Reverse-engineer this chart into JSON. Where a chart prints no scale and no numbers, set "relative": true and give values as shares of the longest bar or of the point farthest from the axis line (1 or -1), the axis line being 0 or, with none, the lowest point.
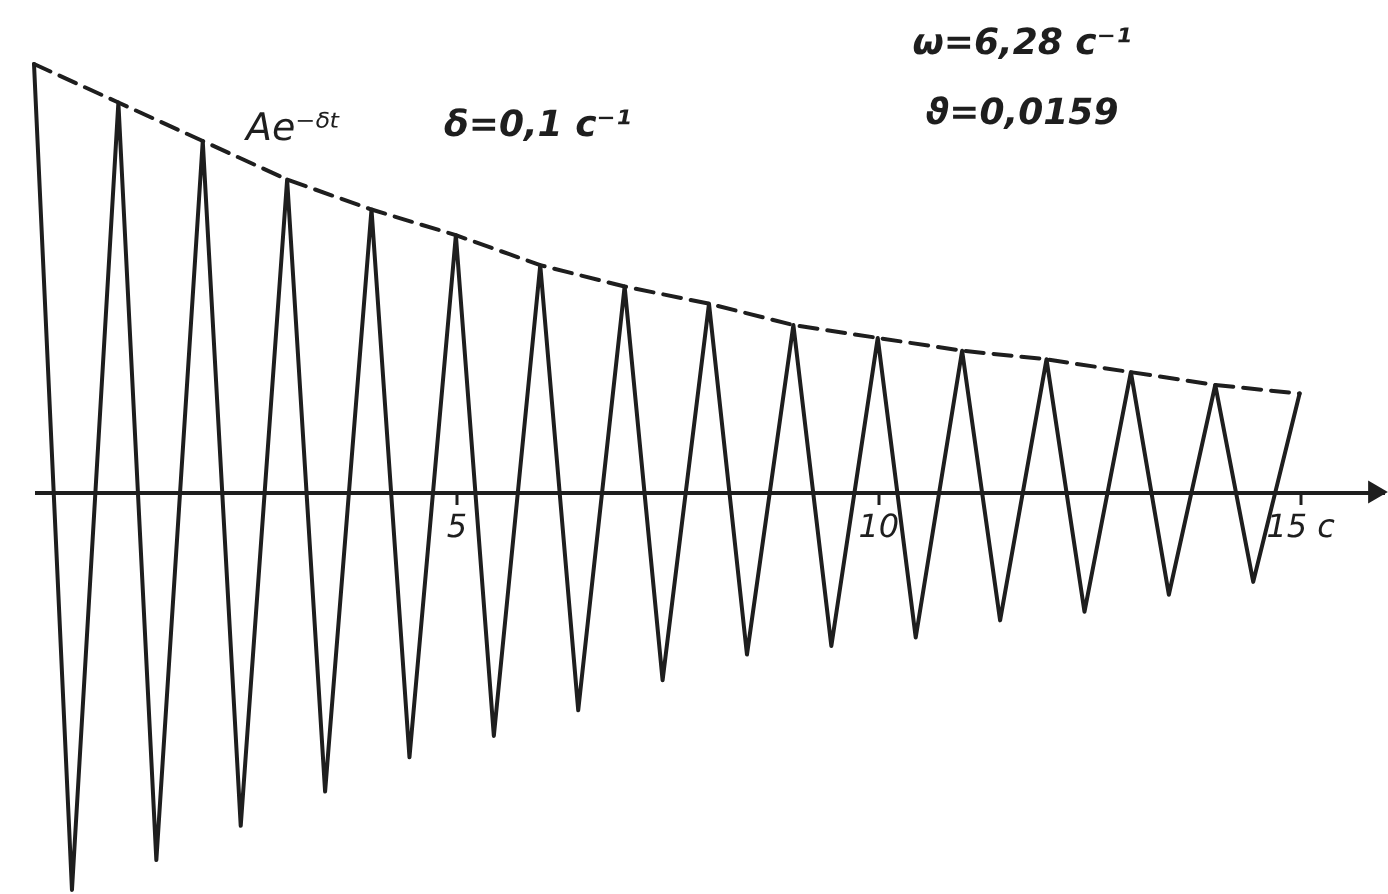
{
  "chart_data": {
    "type": "line",
    "relative": true,
    "tick_labels": "x",
    "xlim": [
      0,
      16
    ],
    "xticks": [
      5,
      10,
      {
        "value": 15,
        "label": "15 с"
      }
    ],
    "annotations": [
      "δ=0,1 с⁻¹",
      "ω=6,28 с⁻¹",
      "ϑ=0,0159"
    ],
    "series": [
      {
        "color": "#1e1e1e",
        "line_style": "solid",
        "x": [
          0,
          0.45,
          1,
          1.45,
          2,
          2.45,
          3,
          3.45,
          4,
          4.45,
          5,
          5.45,
          6,
          6.45,
          7,
          7.45,
          8,
          8.45,
          9,
          9.45,
          10,
          10.45,
          11,
          11.45,
          12,
          12.45,
          13,
          13.45,
          14,
          14.45,
          15
        ],
        "values": [
          1,
          -0.93,
          0.91,
          -0.86,
          0.82,
          -0.78,
          0.73,
          -0.7,
          0.66,
          -0.62,
          0.6,
          -0.57,
          0.53,
          -0.51,
          0.48,
          -0.44,
          0.44,
          -0.38,
          0.39,
          -0.36,
          0.36,
          -0.34,
          0.33,
          -0.3,
          0.31,
          -0.28,
          0.28,
          -0.24,
          0.25,
          -0.21,
          0.23
        ]
      },
      {
        "name": "Ae⁻ᵟᵗ",
        "color": "#1e1e1e",
        "line_style": "dashed",
        "x": [
          0,
          1,
          2,
          3,
          4,
          5,
          6,
          7,
          8,
          9,
          10,
          11,
          12,
          13,
          14,
          15
        ],
        "values": [
          1,
          0.91,
          0.82,
          0.73,
          0.66,
          0.6,
          0.53,
          0.48,
          0.44,
          0.39,
          0.36,
          0.33,
          0.31,
          0.28,
          0.25,
          0.23
        ]
      }
    ]
  }
}
